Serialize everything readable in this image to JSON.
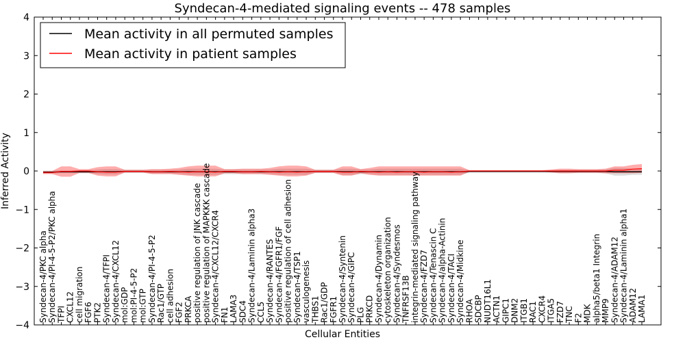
{
  "chart_data": {
    "type": "line",
    "title": "Syndecan-4-mediated signaling events -- 478 samples",
    "xlabel": "Cellular Entities",
    "ylabel": "Inferred Activity",
    "ylim": [
      -4,
      4
    ],
    "yticks": [
      -4,
      -3,
      -2,
      -1,
      0,
      1,
      2,
      3,
      4
    ],
    "ytick_labels": [
      "−4",
      "−3",
      "−2",
      "−1",
      "0",
      "1",
      "2",
      "3",
      "4"
    ],
    "grid": false,
    "legend_position": "top-left",
    "categories": [
      "Syndecan-4/PKC alpha",
      "Syndecan-4/PI-4-5-P2/PKC alpha",
      "TFPI",
      "CXCL12",
      "cell migration",
      "FGF6",
      "PTK2",
      "Syndecan-4/TFPI",
      "Syndecan-4/CXCL12",
      "mol:GDP",
      "mol:PI-4-5-P2",
      "mol:GTP",
      "Syndecan-4/PI-4-5-P2",
      "Rac1/GTP",
      "cell adhesion",
      "FGF2",
      "PRKCA",
      "positive regulation of JNK cascade",
      "positive regulation of MAPKKK cascade",
      "Syndecan-4/CXCL12/CXCR4",
      "FN1",
      "LAMA3",
      "SDC4",
      "Syndecan-4/Laminin alpha3",
      "CCL5",
      "Syndecan-4/RANTES",
      "Syndecan-4/FGFR1/FGF",
      "positive regulation of cell adhesion",
      "Syndecan-4/TSP1",
      "vasculogenesis",
      "THBS1",
      "Rac1/GDP",
      "FGFR1",
      "Syndecan-4/Syntenin",
      "Syndecan-4/GIPC",
      "PLG",
      "PRKCD",
      "Syndecan-4/Dynamin",
      "cytoskeleton organization",
      "Syndecan-4/Syndesmos",
      "TNFRSF13B",
      "integrin-mediated signaling pathway",
      "Syndecan-4/FZD7",
      "Syndecan-4/Tenascin C",
      "Syndecan-4/alpha-Actinin",
      "Syndecan-4/TACI",
      "Syndecan-4/Midkine",
      "RHOA",
      "SDCBP",
      "NUDT16L1",
      "ACTN1",
      "GIPC1",
      "DNM2",
      "ITGB1",
      "RAC1",
      "CXCR4",
      "ITGA5",
      "FZD7",
      "TNC",
      "F2",
      "MDK",
      "alpha5/beta1 Integrin",
      "MMP9",
      "Syndecan-4/ADAM12",
      "Syndecan-4/Laminin alpha1",
      "ADAM12",
      "LAMA1"
    ],
    "series": [
      {
        "name": "Mean activity in all permuted samples",
        "color": "#000000",
        "values": [
          -0.03,
          -0.03,
          -0.02,
          -0.02,
          -0.02,
          -0.02,
          -0.02,
          -0.02,
          -0.02,
          -0.01,
          -0.01,
          -0.01,
          -0.02,
          -0.02,
          -0.02,
          -0.02,
          -0.02,
          -0.02,
          -0.02,
          -0.02,
          -0.02,
          -0.02,
          -0.02,
          -0.02,
          -0.02,
          -0.02,
          -0.02,
          -0.02,
          -0.02,
          -0.02,
          -0.01,
          -0.01,
          -0.01,
          -0.02,
          -0.02,
          -0.02,
          -0.02,
          -0.02,
          -0.02,
          -0.02,
          -0.02,
          -0.02,
          -0.02,
          -0.02,
          -0.02,
          -0.02,
          -0.02,
          -0.01,
          -0.01,
          -0.01,
          -0.01,
          -0.01,
          -0.01,
          -0.01,
          -0.01,
          -0.01,
          -0.01,
          -0.01,
          -0.01,
          -0.01,
          -0.01,
          -0.01,
          -0.01,
          -0.02,
          -0.02,
          -0.02,
          -0.02
        ],
        "band": {
          "lower": [
            -0.07,
            -0.07,
            -0.06,
            -0.06,
            -0.06,
            -0.06,
            -0.08,
            -0.09,
            -0.09,
            -0.05,
            -0.05,
            -0.05,
            -0.07,
            -0.07,
            -0.07,
            -0.08,
            -0.1,
            -0.1,
            -0.1,
            -0.1,
            -0.08,
            -0.08,
            -0.08,
            -0.08,
            -0.08,
            -0.08,
            -0.1,
            -0.1,
            -0.1,
            -0.1,
            -0.05,
            -0.05,
            -0.05,
            -0.1,
            -0.1,
            -0.08,
            -0.08,
            -0.1,
            -0.1,
            -0.1,
            -0.1,
            -0.1,
            -0.1,
            -0.1,
            -0.1,
            -0.1,
            -0.1,
            -0.04,
            -0.04,
            -0.04,
            -0.04,
            -0.04,
            -0.04,
            -0.04,
            -0.04,
            -0.04,
            -0.04,
            -0.05,
            -0.05,
            -0.05,
            -0.05,
            -0.05,
            -0.06,
            -0.12,
            -0.12,
            -0.1,
            -0.1
          ],
          "upper": [
            0.01,
            0.01,
            0.02,
            0.02,
            0.02,
            0.02,
            0.04,
            0.05,
            0.05,
            0.03,
            0.03,
            0.03,
            0.03,
            0.03,
            0.03,
            0.04,
            0.06,
            0.06,
            0.06,
            0.06,
            0.04,
            0.04,
            0.04,
            0.04,
            0.04,
            0.04,
            0.06,
            0.06,
            0.06,
            0.06,
            0.03,
            0.03,
            0.03,
            0.06,
            0.06,
            0.04,
            0.04,
            0.06,
            0.06,
            0.06,
            0.06,
            0.06,
            0.06,
            0.06,
            0.06,
            0.06,
            0.06,
            0.02,
            0.02,
            0.02,
            0.02,
            0.02,
            0.02,
            0.02,
            0.02,
            0.02,
            0.02,
            0.03,
            0.03,
            0.03,
            0.03,
            0.03,
            0.04,
            0.08,
            0.08,
            0.06,
            0.06
          ]
        }
      },
      {
        "name": "Mean activity in patient samples",
        "color": "#ff0000",
        "values": [
          -0.04,
          -0.04,
          -0.01,
          -0.01,
          0,
          0,
          -0.02,
          -0.03,
          -0.03,
          -0.01,
          -0.01,
          -0.01,
          -0.02,
          -0.02,
          -0.01,
          -0.02,
          -0.03,
          -0.02,
          -0.02,
          -0.03,
          -0.01,
          -0.01,
          -0.02,
          -0.02,
          -0.01,
          -0.02,
          -0.03,
          -0.02,
          -0.03,
          -0.02,
          -0.01,
          -0.01,
          -0.01,
          -0.03,
          -0.03,
          -0.01,
          -0.02,
          -0.03,
          -0.02,
          -0.03,
          -0.02,
          -0.02,
          -0.03,
          -0.02,
          -0.02,
          -0.03,
          -0.02,
          0,
          0,
          0,
          0,
          0,
          0,
          0,
          0,
          0,
          0,
          0,
          0,
          0,
          0,
          0,
          0,
          0.02,
          0.02,
          0.05,
          0.06
        ],
        "band": {
          "lower": [
            -0.08,
            -0.08,
            -0.15,
            -0.15,
            -0.05,
            -0.05,
            -0.12,
            -0.14,
            -0.14,
            -0.04,
            -0.04,
            -0.04,
            -0.08,
            -0.08,
            -0.08,
            -0.1,
            -0.12,
            -0.14,
            -0.14,
            -0.14,
            -0.06,
            -0.06,
            -0.08,
            -0.08,
            -0.08,
            -0.1,
            -0.12,
            -0.14,
            -0.14,
            -0.12,
            -0.05,
            -0.05,
            -0.05,
            -0.12,
            -0.12,
            -0.06,
            -0.1,
            -0.12,
            -0.12,
            -0.12,
            -0.12,
            -0.12,
            -0.12,
            -0.12,
            -0.12,
            -0.12,
            -0.12,
            -0.02,
            -0.02,
            -0.02,
            -0.02,
            -0.02,
            -0.02,
            -0.02,
            -0.02,
            -0.02,
            -0.04,
            -0.06,
            -0.06,
            -0.05,
            -0.05,
            -0.05,
            -0.06,
            -0.06,
            -0.06,
            -0.06,
            -0.05
          ],
          "upper": [
            0,
            0,
            0.12,
            0.12,
            0.05,
            0.05,
            0.1,
            0.12,
            0.12,
            0.03,
            0.03,
            0.03,
            0.05,
            0.05,
            0.06,
            0.08,
            0.12,
            0.14,
            0.14,
            0.14,
            0.05,
            0.05,
            0.06,
            0.06,
            0.06,
            0.08,
            0.12,
            0.14,
            0.14,
            0.12,
            0.03,
            0.03,
            0.03,
            0.12,
            0.12,
            0.05,
            0.08,
            0.12,
            0.12,
            0.12,
            0.12,
            0.12,
            0.12,
            0.12,
            0.12,
            0.12,
            0.12,
            0.02,
            0.02,
            0.02,
            0.02,
            0.02,
            0.02,
            0.02,
            0.02,
            0.02,
            0.04,
            0.06,
            0.06,
            0.05,
            0.05,
            0.05,
            0.06,
            0.12,
            0.12,
            0.16,
            0.18
          ]
        }
      }
    ]
  }
}
